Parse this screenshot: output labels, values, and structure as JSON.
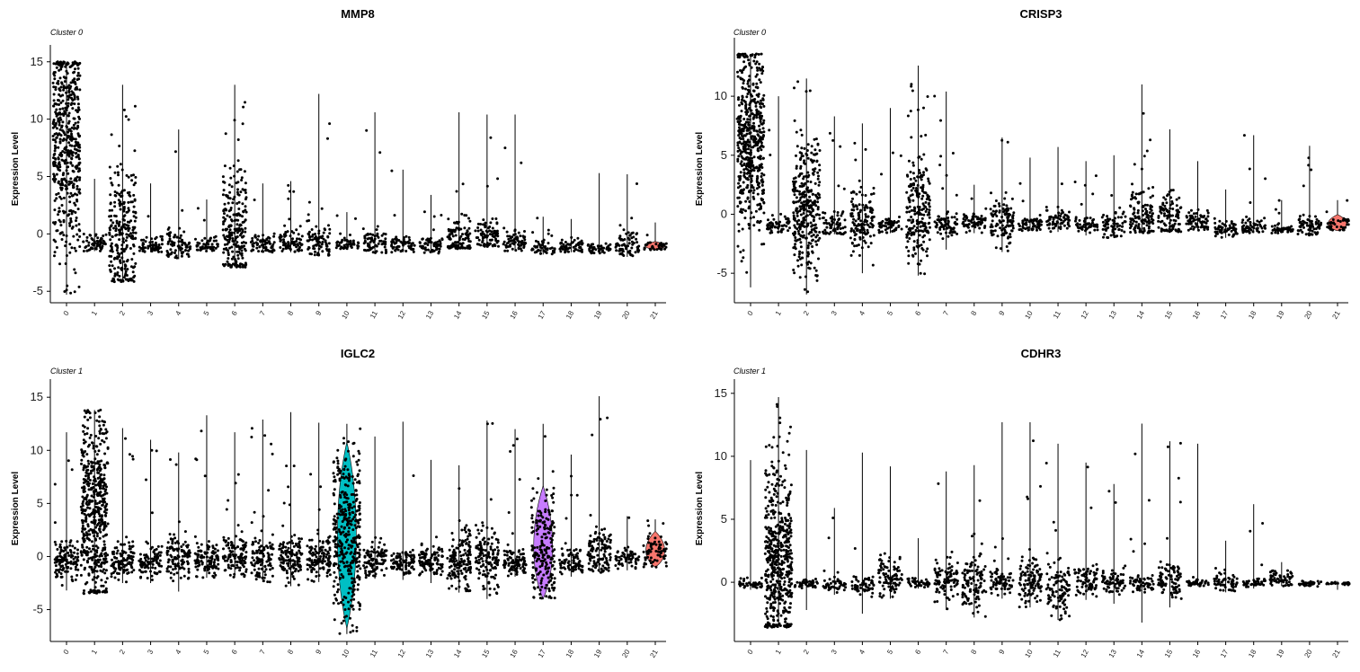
{
  "chart_data": [
    {
      "type": "violin",
      "title": "MMP8",
      "subtitle": "Cluster 0",
      "ylabel": "Expression Level",
      "xlabel": "",
      "categories": [
        "0",
        "1",
        "2",
        "3",
        "4",
        "5",
        "6",
        "7",
        "8",
        "9",
        "10",
        "11",
        "12",
        "13",
        "14",
        "15",
        "16",
        "17",
        "18",
        "19",
        "20",
        "21"
      ],
      "yticks": [
        -5,
        0,
        5,
        10,
        15
      ],
      "ylim": [
        -6,
        16
      ],
      "groups": [
        {
          "cluster": "0",
          "max": 15.0,
          "min": -5.3,
          "center": 7.5,
          "spread": 5.0,
          "n": 520,
          "color": ""
        },
        {
          "cluster": "1",
          "max": 4.8,
          "min": -1.5,
          "center": -0.8,
          "spread": 0.5,
          "n": 60,
          "color": ""
        },
        {
          "cluster": "2",
          "max": 13.0,
          "min": -4.2,
          "center": -0.5,
          "spread": 3.0,
          "n": 260,
          "color": ""
        },
        {
          "cluster": "3",
          "max": 4.4,
          "min": -1.6,
          "center": -1.0,
          "spread": 0.4,
          "n": 60,
          "color": ""
        },
        {
          "cluster": "4",
          "max": 9.1,
          "min": -2.2,
          "center": -0.9,
          "spread": 0.6,
          "n": 80,
          "color": ""
        },
        {
          "cluster": "5",
          "max": 3.0,
          "min": -1.5,
          "center": -1.0,
          "spread": 0.3,
          "n": 55,
          "color": ""
        },
        {
          "cluster": "6",
          "max": 13.0,
          "min": -2.9,
          "center": 0.5,
          "spread": 2.5,
          "n": 230,
          "color": ""
        },
        {
          "cluster": "7",
          "max": 4.4,
          "min": -1.6,
          "center": -0.9,
          "spread": 0.5,
          "n": 70,
          "color": ""
        },
        {
          "cluster": "8",
          "max": 4.6,
          "min": -1.6,
          "center": -0.7,
          "spread": 0.6,
          "n": 80,
          "color": ""
        },
        {
          "cluster": "9",
          "max": 12.2,
          "min": -1.9,
          "center": -0.8,
          "spread": 0.8,
          "n": 90,
          "color": ""
        },
        {
          "cluster": "10",
          "max": 1.9,
          "min": -1.3,
          "center": -0.9,
          "spread": 0.3,
          "n": 50,
          "color": ""
        },
        {
          "cluster": "11",
          "max": 10.6,
          "min": -1.7,
          "center": -0.7,
          "spread": 0.6,
          "n": 70,
          "color": ""
        },
        {
          "cluster": "12",
          "max": 5.6,
          "min": -1.6,
          "center": -1.0,
          "spread": 0.4,
          "n": 60,
          "color": ""
        },
        {
          "cluster": "13",
          "max": 3.4,
          "min": -1.7,
          "center": -1.0,
          "spread": 0.4,
          "n": 60,
          "color": ""
        },
        {
          "cluster": "14",
          "max": 10.6,
          "min": -1.3,
          "center": -0.4,
          "spread": 1.0,
          "n": 110,
          "color": ""
        },
        {
          "cluster": "15",
          "max": 10.4,
          "min": -1.2,
          "center": -0.3,
          "spread": 0.8,
          "n": 90,
          "color": ""
        },
        {
          "cluster": "16",
          "max": 10.4,
          "min": -1.5,
          "center": -0.7,
          "spread": 0.5,
          "n": 70,
          "color": ""
        },
        {
          "cluster": "17",
          "max": 1.5,
          "min": -1.8,
          "center": -1.2,
          "spread": 0.3,
          "n": 55,
          "color": ""
        },
        {
          "cluster": "18",
          "max": 1.3,
          "min": -1.6,
          "center": -1.1,
          "spread": 0.3,
          "n": 55,
          "color": ""
        },
        {
          "cluster": "19",
          "max": 5.3,
          "min": -1.7,
          "center": -1.3,
          "spread": 0.2,
          "n": 50,
          "color": ""
        },
        {
          "cluster": "20",
          "max": 5.2,
          "min": -2.0,
          "center": -0.9,
          "spread": 0.6,
          "n": 70,
          "color": ""
        },
        {
          "cluster": "21",
          "max": 1.0,
          "min": -1.4,
          "center": -1.1,
          "spread": 0.2,
          "n": 40,
          "color": "#f8766d"
        }
      ]
    },
    {
      "type": "violin",
      "title": "CRISP3",
      "subtitle": "Cluster 0",
      "ylabel": "Expression Level",
      "xlabel": "",
      "categories": [
        "0",
        "1",
        "2",
        "3",
        "4",
        "5",
        "6",
        "7",
        "8",
        "9",
        "10",
        "11",
        "12",
        "13",
        "14",
        "15",
        "16",
        "17",
        "18",
        "19",
        "20",
        "21"
      ],
      "yticks": [
        -5,
        0,
        5,
        10
      ],
      "ylim": [
        -7.5,
        14.5
      ],
      "groups": [
        {
          "cluster": "0",
          "max": 13.6,
          "min": -6.2,
          "center": 6.0,
          "spread": 4.0,
          "n": 520,
          "color": ""
        },
        {
          "cluster": "1",
          "max": 10.0,
          "min": -1.6,
          "center": -1.0,
          "spread": 0.4,
          "n": 60,
          "color": ""
        },
        {
          "cluster": "2",
          "max": 11.5,
          "min": -6.8,
          "center": 0.5,
          "spread": 3.0,
          "n": 330,
          "color": ""
        },
        {
          "cluster": "3",
          "max": 8.3,
          "min": -1.7,
          "center": -0.9,
          "spread": 0.6,
          "n": 70,
          "color": ""
        },
        {
          "cluster": "4",
          "max": 7.7,
          "min": -5.0,
          "center": -0.7,
          "spread": 1.4,
          "n": 140,
          "color": ""
        },
        {
          "cluster": "5",
          "max": 9.0,
          "min": -1.6,
          "center": -1.0,
          "spread": 0.4,
          "n": 60,
          "color": ""
        },
        {
          "cluster": "6",
          "max": 12.6,
          "min": -5.2,
          "center": 0.3,
          "spread": 2.2,
          "n": 220,
          "color": ""
        },
        {
          "cluster": "7",
          "max": 10.4,
          "min": -3.0,
          "center": -0.9,
          "spread": 0.6,
          "n": 75,
          "color": ""
        },
        {
          "cluster": "8",
          "max": 2.5,
          "min": -1.6,
          "center": -0.7,
          "spread": 0.5,
          "n": 70,
          "color": ""
        },
        {
          "cluster": "9",
          "max": 6.5,
          "min": -3.2,
          "center": -0.8,
          "spread": 1.0,
          "n": 110,
          "color": ""
        },
        {
          "cluster": "10",
          "max": 4.8,
          "min": -1.4,
          "center": -0.9,
          "spread": 0.4,
          "n": 60,
          "color": ""
        },
        {
          "cluster": "11",
          "max": 5.7,
          "min": -1.5,
          "center": -0.7,
          "spread": 0.6,
          "n": 70,
          "color": ""
        },
        {
          "cluster": "12",
          "max": 4.5,
          "min": -1.8,
          "center": -1.0,
          "spread": 0.4,
          "n": 60,
          "color": ""
        },
        {
          "cluster": "13",
          "max": 5.0,
          "min": -2.0,
          "center": -0.9,
          "spread": 0.6,
          "n": 70,
          "color": ""
        },
        {
          "cluster": "14",
          "max": 11.0,
          "min": -1.6,
          "center": -0.2,
          "spread": 1.2,
          "n": 130,
          "color": ""
        },
        {
          "cluster": "15",
          "max": 7.2,
          "min": -1.5,
          "center": -0.3,
          "spread": 1.0,
          "n": 100,
          "color": ""
        },
        {
          "cluster": "16",
          "max": 4.5,
          "min": -1.4,
          "center": -0.6,
          "spread": 0.5,
          "n": 70,
          "color": ""
        },
        {
          "cluster": "17",
          "max": 2.1,
          "min": -2.0,
          "center": -1.2,
          "spread": 0.4,
          "n": 60,
          "color": ""
        },
        {
          "cluster": "18",
          "max": 6.7,
          "min": -1.6,
          "center": -1.0,
          "spread": 0.4,
          "n": 60,
          "color": ""
        },
        {
          "cluster": "19",
          "max": 1.2,
          "min": -1.6,
          "center": -1.3,
          "spread": 0.2,
          "n": 50,
          "color": ""
        },
        {
          "cluster": "20",
          "max": 5.8,
          "min": -1.8,
          "center": -1.0,
          "spread": 0.5,
          "n": 70,
          "color": ""
        },
        {
          "cluster": "21",
          "max": 1.2,
          "min": -1.4,
          "center": -0.9,
          "spread": 0.4,
          "n": 40,
          "color": "#f8766d"
        }
      ]
    },
    {
      "type": "violin",
      "title": "IGLC2",
      "subtitle": "Cluster 1",
      "ylabel": "Expression Level",
      "xlabel": "",
      "categories": [
        "0",
        "1",
        "2",
        "3",
        "4",
        "5",
        "6",
        "7",
        "8",
        "9",
        "10",
        "11",
        "12",
        "13",
        "14",
        "15",
        "16",
        "17",
        "18",
        "19",
        "20",
        "21"
      ],
      "yticks": [
        -5,
        0,
        5,
        10,
        15
      ],
      "ylim": [
        -8,
        16.2
      ],
      "groups": [
        {
          "cluster": "0",
          "max": 11.7,
          "min": -3.2,
          "center": -0.2,
          "spread": 1.0,
          "n": 120,
          "color": ""
        },
        {
          "cluster": "1",
          "max": 13.8,
          "min": -3.5,
          "center": 4.0,
          "spread": 4.5,
          "n": 520,
          "color": ""
        },
        {
          "cluster": "2",
          "max": 12.1,
          "min": -2.5,
          "center": -0.4,
          "spread": 0.9,
          "n": 110,
          "color": ""
        },
        {
          "cluster": "3",
          "max": 11.0,
          "min": -2.5,
          "center": -0.5,
          "spread": 0.7,
          "n": 100,
          "color": ""
        },
        {
          "cluster": "4",
          "max": 9.8,
          "min": -3.3,
          "center": -0.1,
          "spread": 1.0,
          "n": 120,
          "color": ""
        },
        {
          "cluster": "5",
          "max": 13.3,
          "min": -2.0,
          "center": -0.3,
          "spread": 0.9,
          "n": 110,
          "color": ""
        },
        {
          "cluster": "6",
          "max": 11.7,
          "min": -2.0,
          "center": 0.1,
          "spread": 1.0,
          "n": 120,
          "color": ""
        },
        {
          "cluster": "7",
          "max": 12.9,
          "min": -2.4,
          "center": -0.3,
          "spread": 1.0,
          "n": 110,
          "color": ""
        },
        {
          "cluster": "8",
          "max": 13.6,
          "min": -2.8,
          "center": -0.2,
          "spread": 1.2,
          "n": 130,
          "color": ""
        },
        {
          "cluster": "9",
          "max": 12.6,
          "min": -2.4,
          "center": -0.1,
          "spread": 1.1,
          "n": 120,
          "color": ""
        },
        {
          "cluster": "10",
          "max": 12.5,
          "min": -7.3,
          "center": 2.0,
          "spread": 4.0,
          "n": 380,
          "color": "#00bfc4"
        },
        {
          "cluster": "11",
          "max": 11.3,
          "min": -2.1,
          "center": -0.3,
          "spread": 0.8,
          "n": 100,
          "color": ""
        },
        {
          "cluster": "12",
          "max": 12.7,
          "min": -2.2,
          "center": -0.6,
          "spread": 0.6,
          "n": 90,
          "color": ""
        },
        {
          "cluster": "13",
          "max": 9.1,
          "min": -2.5,
          "center": -0.6,
          "spread": 0.7,
          "n": 100,
          "color": ""
        },
        {
          "cluster": "14",
          "max": 8.6,
          "min": -3.4,
          "center": -0.3,
          "spread": 1.6,
          "n": 150,
          "color": ""
        },
        {
          "cluster": "15",
          "max": 12.8,
          "min": -4.0,
          "center": -0.2,
          "spread": 1.4,
          "n": 140,
          "color": ""
        },
        {
          "cluster": "16",
          "max": 12.0,
          "min": -1.9,
          "center": -0.5,
          "spread": 0.7,
          "n": 100,
          "color": ""
        },
        {
          "cluster": "17",
          "max": 12.5,
          "min": -4.0,
          "center": 0.5,
          "spread": 2.8,
          "n": 200,
          "color": "#c77cff"
        },
        {
          "cluster": "18",
          "max": 9.6,
          "min": -1.9,
          "center": -0.4,
          "spread": 0.6,
          "n": 80,
          "color": ""
        },
        {
          "cluster": "19",
          "max": 15.1,
          "min": -1.5,
          "center": 0.3,
          "spread": 1.2,
          "n": 120,
          "color": ""
        },
        {
          "cluster": "20",
          "max": 3.8,
          "min": -1.3,
          "center": -0.3,
          "spread": 0.5,
          "n": 60,
          "color": ""
        },
        {
          "cluster": "21",
          "max": 3.5,
          "min": -1.0,
          "center": 0.4,
          "spread": 0.9,
          "n": 70,
          "color": "#f8766d"
        }
      ]
    },
    {
      "type": "violin",
      "title": "CDHR3",
      "subtitle": "Cluster 1",
      "ylabel": "Expression Level",
      "xlabel": "",
      "categories": [
        "0",
        "1",
        "2",
        "3",
        "4",
        "5",
        "6",
        "7",
        "8",
        "9",
        "10",
        "11",
        "12",
        "13",
        "14",
        "15",
        "16",
        "17",
        "18",
        "19",
        "20",
        "21"
      ],
      "yticks": [
        0,
        5,
        10,
        15
      ],
      "ylim": [
        -4.7,
        15.7
      ],
      "groups": [
        {
          "cluster": "0",
          "max": 9.7,
          "min": -0.6,
          "center": -0.1,
          "spread": 0.2,
          "n": 40,
          "color": ""
        },
        {
          "cluster": "1",
          "max": 14.7,
          "min": -3.6,
          "center": 1.5,
          "spread": 3.5,
          "n": 520,
          "color": ""
        },
        {
          "cluster": "2",
          "max": 10.5,
          "min": -2.2,
          "center": -0.1,
          "spread": 0.2,
          "n": 40,
          "color": ""
        },
        {
          "cluster": "3",
          "max": 5.9,
          "min": -1.0,
          "center": -0.2,
          "spread": 0.3,
          "n": 45,
          "color": ""
        },
        {
          "cluster": "4",
          "max": 10.3,
          "min": -2.5,
          "center": -0.2,
          "spread": 0.4,
          "n": 60,
          "color": ""
        },
        {
          "cluster": "5",
          "max": 9.2,
          "min": -1.3,
          "center": 0.3,
          "spread": 0.8,
          "n": 90,
          "color": ""
        },
        {
          "cluster": "6",
          "max": 3.5,
          "min": -0.5,
          "center": -0.1,
          "spread": 0.2,
          "n": 40,
          "color": ""
        },
        {
          "cluster": "7",
          "max": 8.8,
          "min": -2.2,
          "center": 0.2,
          "spread": 0.8,
          "n": 90,
          "color": ""
        },
        {
          "cluster": "8",
          "max": 9.3,
          "min": -2.8,
          "center": 0.0,
          "spread": 1.0,
          "n": 110,
          "color": ""
        },
        {
          "cluster": "9",
          "max": 12.7,
          "min": -1.3,
          "center": 0.1,
          "spread": 0.5,
          "n": 70,
          "color": ""
        },
        {
          "cluster": "10",
          "max": 12.7,
          "min": -2.0,
          "center": 0.0,
          "spread": 1.0,
          "n": 110,
          "color": ""
        },
        {
          "cluster": "11",
          "max": 11.0,
          "min": -3.0,
          "center": -0.6,
          "spread": 1.0,
          "n": 110,
          "color": ""
        },
        {
          "cluster": "12",
          "max": 9.5,
          "min": -1.4,
          "center": 0.0,
          "spread": 0.6,
          "n": 80,
          "color": ""
        },
        {
          "cluster": "13",
          "max": 7.8,
          "min": -1.7,
          "center": 0.0,
          "spread": 0.5,
          "n": 70,
          "color": ""
        },
        {
          "cluster": "14",
          "max": 12.6,
          "min": -3.2,
          "center": -0.1,
          "spread": 0.4,
          "n": 60,
          "color": ""
        },
        {
          "cluster": "15",
          "max": 11.2,
          "min": -2.0,
          "center": 0.2,
          "spread": 0.7,
          "n": 90,
          "color": ""
        },
        {
          "cluster": "16",
          "max": 11.0,
          "min": -0.3,
          "center": 0.0,
          "spread": 0.2,
          "n": 40,
          "color": ""
        },
        {
          "cluster": "17",
          "max": 3.3,
          "min": -0.8,
          "center": 0.0,
          "spread": 0.4,
          "n": 55,
          "color": ""
        },
        {
          "cluster": "18",
          "max": 6.2,
          "min": -0.5,
          "center": 0.0,
          "spread": 0.2,
          "n": 40,
          "color": ""
        },
        {
          "cluster": "19",
          "max": 1.6,
          "min": -0.3,
          "center": 0.3,
          "spread": 0.4,
          "n": 55,
          "color": ""
        },
        {
          "cluster": "20",
          "max": 0.1,
          "min": -0.4,
          "center": -0.1,
          "spread": 0.1,
          "n": 30,
          "color": ""
        },
        {
          "cluster": "21",
          "max": 0.1,
          "min": -0.6,
          "center": -0.1,
          "spread": 0.05,
          "n": 25,
          "color": ""
        }
      ]
    }
  ]
}
